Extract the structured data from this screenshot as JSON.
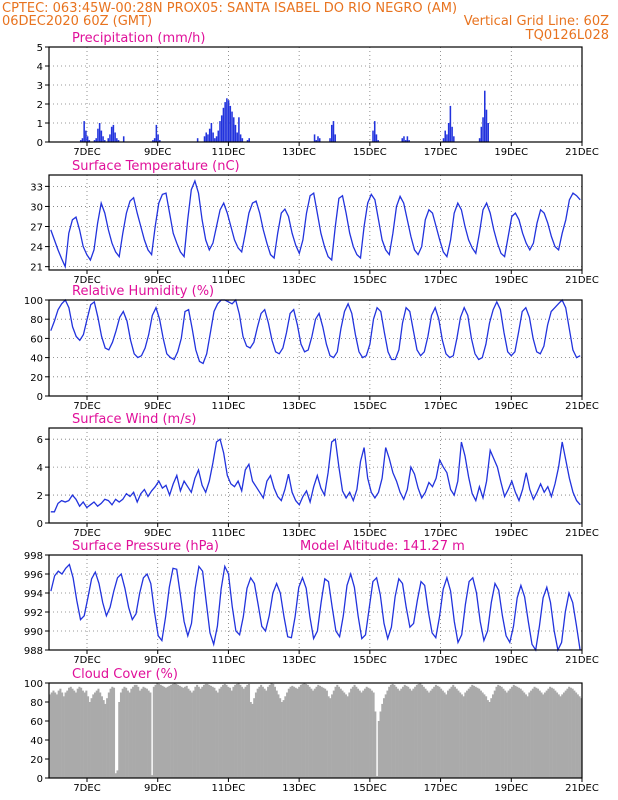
{
  "header": {
    "line1_left": "CPTEC:   063:45W-00:28N   PROX05: SANTA ISABEL DO RIO NEGRO (AM)",
    "line2_left": "06DEC2020 60Z (GMT)",
    "line2_right": "Vertical Grid Line: 60Z",
    "line3_right": "TQ0126L028"
  },
  "colors": {
    "header": "#e8731f",
    "title": "#e0109a",
    "series": "#2233dd",
    "cloud": "#aaaaaa",
    "frame": "#000000"
  },
  "x_tick_labels": [
    "7DEC",
    "9DEC",
    "11DEC",
    "13DEC",
    "15DEC",
    "17DEC",
    "19DEC",
    "21DEC"
  ],
  "chart_data": [
    {
      "type": "bar",
      "title": "Precipitation (mm/h)",
      "ylim": [
        0,
        5
      ],
      "yticks": [
        0,
        1,
        2,
        3,
        4,
        5
      ],
      "grid": true,
      "values": [
        0,
        0,
        0,
        0,
        0,
        0,
        0,
        0,
        0,
        0,
        0,
        0,
        0,
        0,
        0,
        0,
        0,
        0,
        0.1,
        0.2,
        1.1,
        0.6,
        0.3,
        0.1,
        0,
        0,
        0.1,
        0.2,
        0.7,
        1.0,
        0.6,
        0.3,
        0.1,
        0,
        0.2,
        0.4,
        0.8,
        0.9,
        0.5,
        0.2,
        0.1,
        0,
        0,
        0.3,
        0,
        0,
        0,
        0,
        0,
        0,
        0,
        0,
        0,
        0,
        0,
        0,
        0,
        0,
        0,
        0,
        0.1,
        0.2,
        0.9,
        0.4,
        0.1,
        0,
        0,
        0,
        0,
        0,
        0,
        0,
        0,
        0,
        0,
        0,
        0,
        0,
        0,
        0,
        0,
        0,
        0,
        0,
        0,
        0,
        0.2,
        0,
        0,
        0,
        0.3,
        0.5,
        0.4,
        0.7,
        1.0,
        0.5,
        0.2,
        0.3,
        0.6,
        1.1,
        1.4,
        1.8,
        2.1,
        2.3,
        2.2,
        1.9,
        1.6,
        1.3,
        0.9,
        0.5,
        1.3,
        0.4,
        0.2,
        0,
        0,
        0.1,
        0.2,
        0,
        0,
        0,
        0,
        0,
        0,
        0,
        0,
        0,
        0,
        0,
        0,
        0,
        0,
        0,
        0,
        0,
        0,
        0,
        0,
        0,
        0,
        0,
        0,
        0,
        0,
        0,
        0,
        0,
        0,
        0,
        0,
        0,
        0,
        0,
        0,
        0,
        0.4,
        0.1,
        0.3,
        0.2,
        0,
        0,
        0,
        0,
        0,
        0.2,
        0.9,
        1.1,
        0.4,
        0,
        0,
        0,
        0,
        0,
        0,
        0,
        0,
        0,
        0,
        0,
        0,
        0,
        0,
        0,
        0,
        0,
        0,
        0,
        0,
        0,
        0.6,
        1.1,
        0.4,
        0.1,
        0,
        0,
        0,
        0,
        0,
        0,
        0,
        0,
        0,
        0,
        0,
        0,
        0,
        0.2,
        0.3,
        0.1,
        0.3,
        0.1,
        0,
        0,
        0,
        0,
        0,
        0,
        0,
        0,
        0,
        0,
        0,
        0,
        0,
        0,
        0,
        0,
        0,
        0,
        0,
        0.2,
        0.6,
        0.4,
        1.0,
        1.9,
        0.8,
        0.3,
        0,
        0,
        0,
        0,
        0,
        0,
        0,
        0,
        0,
        0,
        0,
        0,
        0,
        0,
        0.2,
        0.8,
        1.3,
        2.7,
        1.7,
        1.0,
        0,
        0,
        0,
        0,
        0,
        0,
        0,
        0,
        0,
        0,
        0,
        0,
        0,
        0,
        0,
        0,
        0,
        0,
        0,
        0,
        0,
        0,
        0,
        0,
        0,
        0,
        0,
        0,
        0,
        0,
        0,
        0,
        0,
        0,
        0,
        0,
        0,
        0,
        0,
        0,
        0,
        0,
        0,
        0,
        0,
        0,
        0,
        0,
        0,
        0,
        0,
        0,
        0,
        0
      ]
    },
    {
      "type": "line",
      "title": "Surface Temperature (nC)",
      "ylim": [
        20.5,
        34.7
      ],
      "yticks": [
        21,
        24,
        27,
        30,
        33
      ],
      "grid": true,
      "values": [
        26.5,
        25.0,
        23.5,
        22.2,
        21.0,
        26.0,
        28.0,
        28.4,
        26.5,
        24.0,
        22.8,
        22.0,
        23.5,
        27.5,
        30.5,
        29.0,
        26.5,
        24.5,
        23.2,
        22.5,
        26.0,
        29.0,
        30.8,
        31.3,
        29.0,
        27.0,
        25.0,
        23.5,
        22.8,
        27.0,
        30.5,
        31.8,
        32.0,
        29.0,
        26.0,
        24.5,
        23.2,
        22.5,
        28.0,
        32.5,
        33.8,
        32.0,
        28.0,
        25.0,
        23.5,
        24.5,
        27.0,
        29.5,
        30.5,
        29.0,
        27.0,
        25.0,
        23.8,
        23.2,
        26.0,
        29.0,
        30.5,
        30.8,
        29.0,
        26.5,
        24.5,
        22.8,
        22.3,
        26.0,
        29.0,
        29.6,
        28.5,
        26.0,
        24.2,
        23.0,
        25.0,
        29.0,
        31.6,
        32.0,
        29.0,
        26.0,
        24.0,
        22.5,
        22.0,
        27.0,
        31.2,
        31.6,
        29.0,
        26.0,
        24.0,
        22.8,
        22.3,
        27.0,
        30.5,
        31.8,
        31.0,
        28.0,
        25.0,
        23.5,
        22.8,
        26.0,
        30.0,
        31.5,
        30.5,
        28.0,
        25.5,
        23.5,
        22.8,
        24.0,
        28.0,
        29.5,
        29.0,
        27.0,
        25.0,
        23.2,
        22.5,
        25.0,
        29.0,
        30.5,
        29.5,
        27.0,
        25.0,
        23.8,
        23.0,
        26.0,
        29.5,
        30.5,
        29.0,
        26.5,
        24.5,
        23.0,
        22.5,
        25.5,
        28.5,
        29.0,
        28.0,
        26.0,
        24.5,
        23.5,
        24.5,
        27.5,
        29.5,
        29.0,
        27.5,
        25.5,
        24.0,
        23.5,
        26.0,
        28.0,
        31.0,
        32.0,
        31.6,
        31.0
      ]
    },
    {
      "type": "line",
      "title": "Relative Humidity (%)",
      "ylim": [
        0,
        100
      ],
      "yticks": [
        0,
        20,
        40,
        60,
        80,
        100
      ],
      "grid": true,
      "values": [
        68,
        78,
        90,
        96,
        100,
        92,
        72,
        62,
        58,
        64,
        80,
        95,
        98,
        82,
        62,
        50,
        48,
        56,
        68,
        82,
        88,
        78,
        58,
        44,
        40,
        42,
        50,
        64,
        84,
        92,
        80,
        60,
        44,
        40,
        38,
        46,
        60,
        88,
        90,
        70,
        48,
        36,
        34,
        44,
        66,
        88,
        96,
        100,
        100,
        98,
        96,
        100,
        85,
        62,
        52,
        50,
        56,
        72,
        86,
        90,
        76,
        58,
        46,
        44,
        50,
        66,
        86,
        90,
        74,
        54,
        46,
        48,
        62,
        80,
        86,
        72,
        54,
        42,
        40,
        46,
        70,
        88,
        96,
        86,
        64,
        46,
        40,
        42,
        54,
        80,
        92,
        88,
        66,
        46,
        38,
        38,
        48,
        76,
        92,
        88,
        68,
        48,
        42,
        46,
        62,
        84,
        92,
        80,
        58,
        44,
        40,
        42,
        60,
        82,
        92,
        84,
        60,
        44,
        38,
        40,
        54,
        76,
        90,
        98,
        90,
        66,
        46,
        42,
        46,
        66,
        88,
        92,
        82,
        60,
        46,
        44,
        52,
        74,
        88,
        92,
        96,
        100,
        92,
        70,
        48,
        40,
        42
      ]
    },
    {
      "type": "line",
      "title": "Surface Wind (m/s)",
      "ylim": [
        0,
        6.8
      ],
      "yticks": [
        0,
        2,
        4,
        6
      ],
      "grid": true,
      "values": [
        0.8,
        0.8,
        1.4,
        1.6,
        1.5,
        1.6,
        2.0,
        1.7,
        1.2,
        1.5,
        1.1,
        1.3,
        1.5,
        1.2,
        1.4,
        1.7,
        1.6,
        1.3,
        1.7,
        1.5,
        1.7,
        2.1,
        1.9,
        2.2,
        1.5,
        2.1,
        2.4,
        1.9,
        2.3,
        2.6,
        3.0,
        2.5,
        2.7,
        2.0,
        2.8,
        3.4,
        2.3,
        3.0,
        2.6,
        2.2,
        3.2,
        3.8,
        2.7,
        2.2,
        3.0,
        4.3,
        5.8,
        6.0,
        5.0,
        3.4,
        2.8,
        2.6,
        3.0,
        2.3,
        3.8,
        4.2,
        3.0,
        2.6,
        2.2,
        1.8,
        3.0,
        3.4,
        2.5,
        1.9,
        1.6,
        2.4,
        3.5,
        2.2,
        1.6,
        1.3,
        1.9,
        2.3,
        1.5,
        2.6,
        3.4,
        2.5,
        2.0,
        3.6,
        5.8,
        6.0,
        4.0,
        2.3,
        1.8,
        2.2,
        1.6,
        2.4,
        4.4,
        5.4,
        3.2,
        2.2,
        1.8,
        2.2,
        3.2,
        5.4,
        4.6,
        3.6,
        3.0,
        2.2,
        1.7,
        2.4,
        4.0,
        3.5,
        2.5,
        1.8,
        2.2,
        2.9,
        2.6,
        3.2,
        4.5,
        4.0,
        3.6,
        2.4,
        2.0,
        3.0,
        5.8,
        4.8,
        3.3,
        2.1,
        1.6,
        2.6,
        1.8,
        3.0,
        5.2,
        4.6,
        4.0,
        2.9,
        1.9,
        2.4,
        3.0,
        2.2,
        1.6,
        2.4,
        3.6,
        2.4,
        1.7,
        2.2,
        2.8,
        2.2,
        2.6,
        1.9,
        2.8,
        4.0,
        5.8,
        4.5,
        3.2,
        2.2,
        1.6,
        1.3
      ]
    },
    {
      "type": "line",
      "title": "Surface Pressure (hPa)",
      "subtitle": "Model Altitude: 141.27 m",
      "ylim": [
        988,
        998
      ],
      "yticks": [
        988,
        990,
        992,
        994,
        996,
        998
      ],
      "grid": true,
      "values": [
        994.2,
        995.8,
        996.3,
        996.0,
        996.6,
        997.0,
        995.6,
        993.2,
        991.2,
        991.6,
        993.5,
        995.5,
        996.2,
        995.0,
        993.0,
        991.6,
        992.5,
        994.2,
        995.6,
        996.0,
        994.5,
        992.5,
        991.2,
        991.8,
        994.0,
        995.6,
        996.0,
        995.0,
        992.0,
        989.5,
        989.0,
        991.5,
        994.6,
        996.6,
        996.5,
        993.8,
        991.0,
        989.5,
        990.8,
        994.5,
        996.8,
        996.3,
        993.0,
        989.8,
        988.6,
        990.5,
        994.4,
        996.8,
        996.0,
        992.6,
        990.0,
        989.6,
        991.5,
        994.5,
        995.6,
        995.0,
        992.8,
        990.5,
        990.0,
        991.6,
        994.0,
        995.0,
        994.0,
        991.5,
        989.4,
        989.3,
        991.5,
        994.6,
        995.6,
        994.5,
        991.5,
        989.2,
        990.0,
        993.0,
        995.5,
        995.2,
        992.5,
        990.0,
        989.4,
        991.6,
        994.8,
        996.0,
        994.6,
        991.6,
        989.2,
        989.6,
        992.4,
        995.2,
        995.6,
        993.8,
        990.8,
        989.2,
        990.4,
        993.6,
        995.5,
        995.0,
        992.5,
        990.4,
        990.8,
        993.2,
        995.2,
        994.8,
        992.0,
        989.8,
        989.3,
        991.5,
        994.4,
        995.6,
        994.2,
        991.0,
        988.8,
        989.6,
        992.8,
        995.2,
        995.6,
        994.0,
        991.0,
        989.0,
        990.0,
        993.0,
        995.0,
        994.3,
        991.6,
        989.5,
        988.8,
        990.5,
        993.5,
        994.8,
        993.6,
        991.0,
        988.6,
        988.0,
        990.5,
        993.5,
        994.6,
        993.0,
        990.0,
        988.0,
        988.8,
        992.0,
        994.0,
        993.0,
        990.6,
        988.0
      ]
    },
    {
      "type": "area",
      "title": "Cloud Cover (%)",
      "ylim": [
        0,
        100
      ],
      "yticks": [
        0,
        20,
        40,
        60,
        80,
        100
      ],
      "grid": false,
      "values": [
        88,
        90,
        92,
        90,
        88,
        92,
        94,
        90,
        86,
        90,
        92,
        95,
        96,
        94,
        92,
        90,
        94,
        96,
        95,
        92,
        90,
        92,
        86,
        80,
        84,
        88,
        90,
        92,
        94,
        90,
        86,
        82,
        78,
        84,
        90,
        94,
        96,
        95,
        5,
        8,
        80,
        90,
        94,
        96,
        95,
        92,
        90,
        94,
        96,
        98,
        98,
        96,
        92,
        94,
        96,
        95,
        94,
        92,
        90,
        3,
        96,
        98,
        100,
        99,
        98,
        97,
        96,
        95,
        96,
        97,
        98,
        99,
        100,
        99,
        98,
        97,
        96,
        95,
        96,
        97,
        94,
        92,
        90,
        92,
        96,
        98,
        96,
        94,
        96,
        98,
        99,
        99,
        98,
        97,
        96,
        95,
        92,
        90,
        94,
        96,
        98,
        99,
        98,
        96,
        95,
        92,
        96,
        98,
        99,
        100,
        98,
        96,
        94,
        96,
        98,
        99,
        80,
        78,
        84,
        90,
        94,
        96,
        98,
        96,
        94,
        92,
        96,
        98,
        100,
        99,
        96,
        92,
        88,
        84,
        80,
        82,
        86,
        90,
        94,
        96,
        97,
        96,
        95,
        94,
        96,
        98,
        99,
        100,
        99,
        98,
        96,
        94,
        92,
        94,
        96,
        98,
        97,
        96,
        95,
        94,
        92,
        86,
        84,
        88,
        92,
        96,
        98,
        96,
        94,
        92,
        90,
        88,
        86,
        90,
        94,
        96,
        98,
        96,
        94,
        92,
        90,
        92,
        94,
        96,
        95,
        94,
        92,
        90,
        70,
        2,
        60,
        70,
        78,
        84,
        88,
        92,
        96,
        98,
        99,
        98,
        96,
        94,
        92,
        94,
        96,
        98,
        97,
        96,
        94,
        92,
        94,
        96,
        98,
        99,
        100,
        98,
        96,
        94,
        92,
        90,
        92,
        94,
        96,
        98,
        97,
        96,
        94,
        92,
        90,
        88,
        92,
        94,
        96,
        98,
        96,
        94,
        92,
        90,
        88,
        86,
        90,
        92,
        94,
        96,
        98,
        97,
        96,
        95,
        94,
        92,
        90,
        88,
        86,
        82,
        80,
        84,
        88,
        92,
        96,
        98,
        97,
        96,
        94,
        92,
        90,
        92,
        94,
        96,
        98,
        97,
        96,
        95,
        94,
        92,
        90,
        88,
        86,
        90,
        92,
        94,
        96,
        95,
        94,
        92,
        90,
        88,
        90,
        92,
        94,
        96,
        95,
        94,
        92,
        90,
        88,
        86,
        88,
        90,
        92,
        94,
        96,
        95,
        94,
        92,
        90,
        88,
        86,
        84
      ]
    }
  ]
}
